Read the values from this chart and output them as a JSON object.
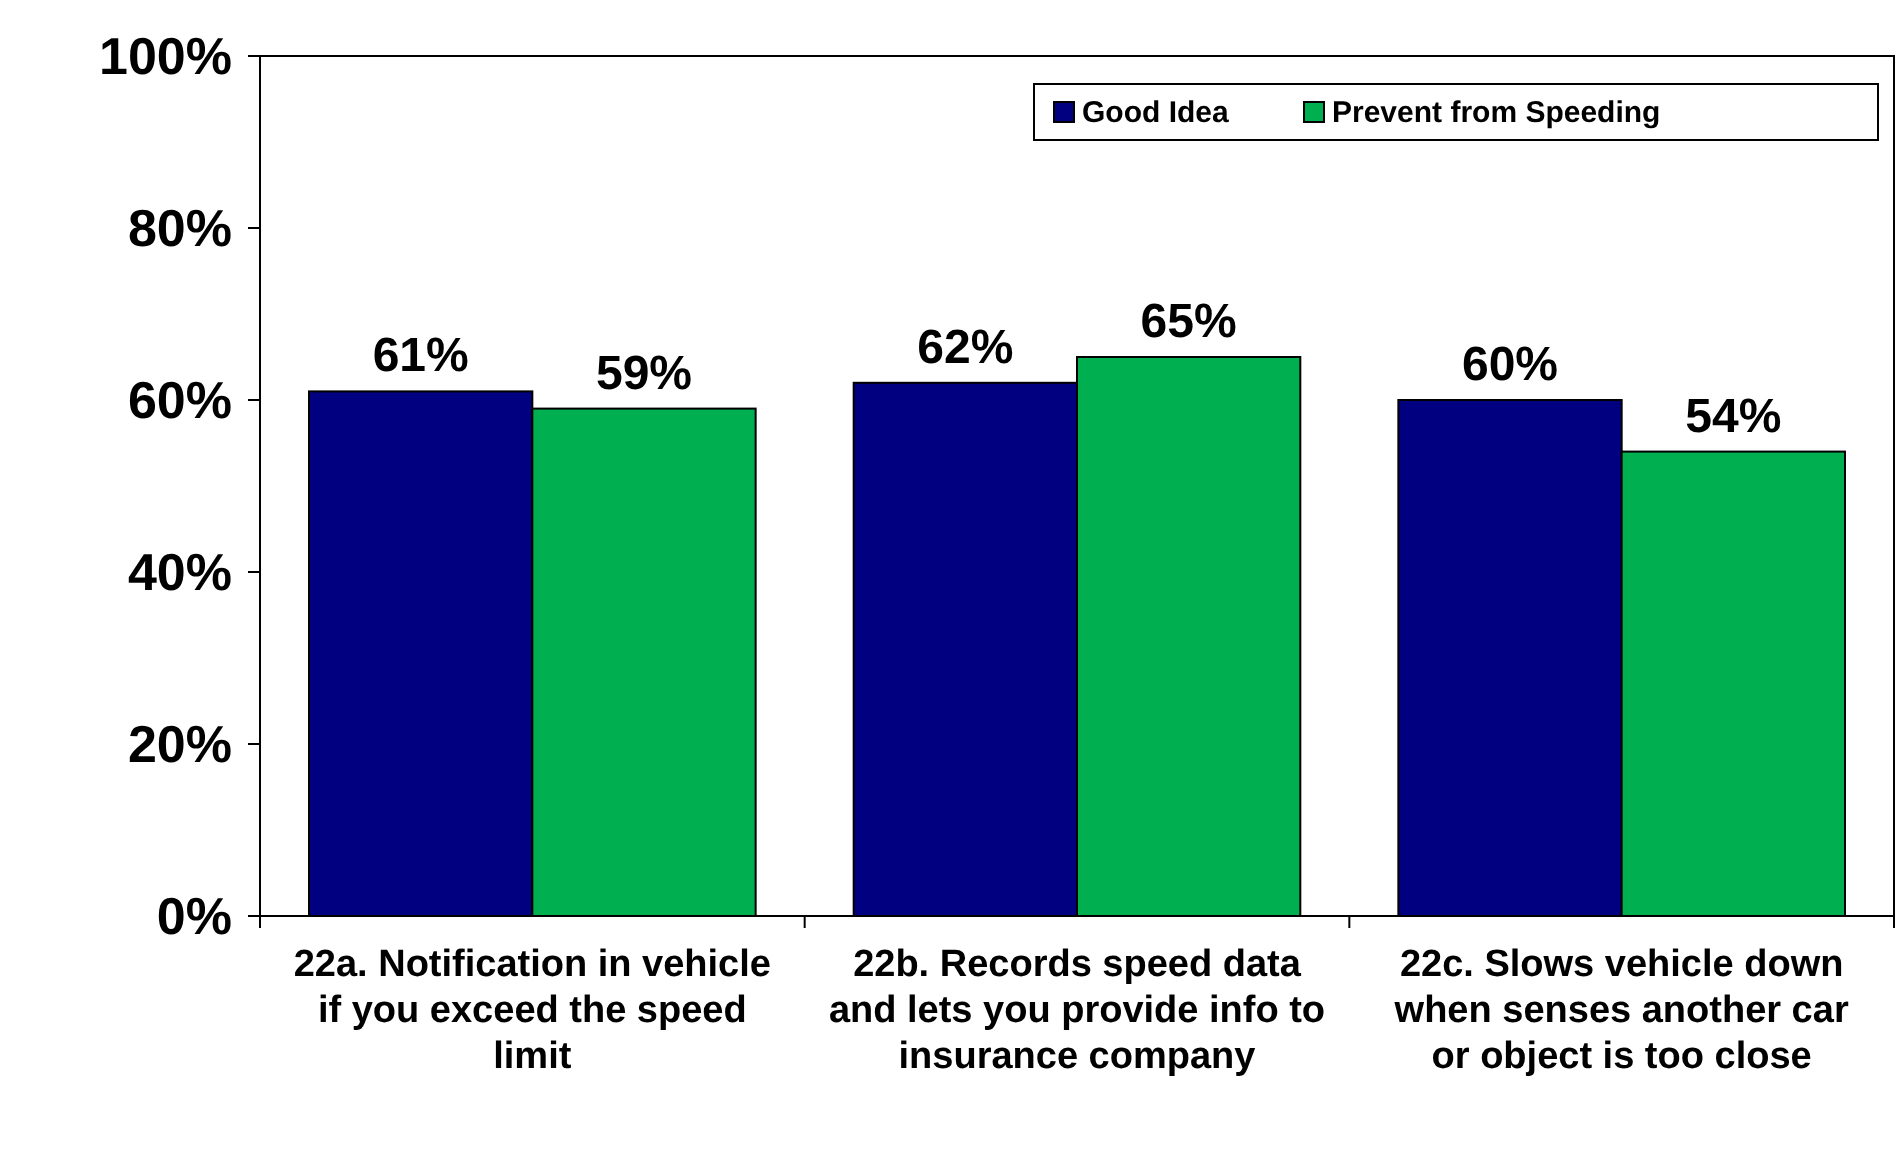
{
  "chart_data": {
    "type": "bar",
    "categories": [
      "22a. Notification in vehicle if you exceed the speed limit",
      "22b. Records speed data and lets you provide info to insurance company",
      "22c. Slows vehicle down when senses another car or object is too close"
    ],
    "series": [
      {
        "name": "Good Idea",
        "color": "#000080",
        "values": [
          61,
          62,
          60
        ],
        "value_labels": [
          "61%",
          "62%",
          "60%"
        ]
      },
      {
        "name": "Prevent from Speeding",
        "color": "#00b050",
        "values": [
          59,
          65,
          54
        ],
        "value_labels": [
          "59%",
          "65%",
          "54%"
        ]
      }
    ],
    "ylim": [
      0,
      100
    ],
    "yticks": [
      {
        "value": 0,
        "label": "0%"
      },
      {
        "value": 20,
        "label": "20%"
      },
      {
        "value": 40,
        "label": "40%"
      },
      {
        "value": 60,
        "label": "60%"
      },
      {
        "value": 80,
        "label": "80%"
      },
      {
        "value": 100,
        "label": "100%"
      }
    ],
    "grid": false,
    "legend": "top right"
  }
}
